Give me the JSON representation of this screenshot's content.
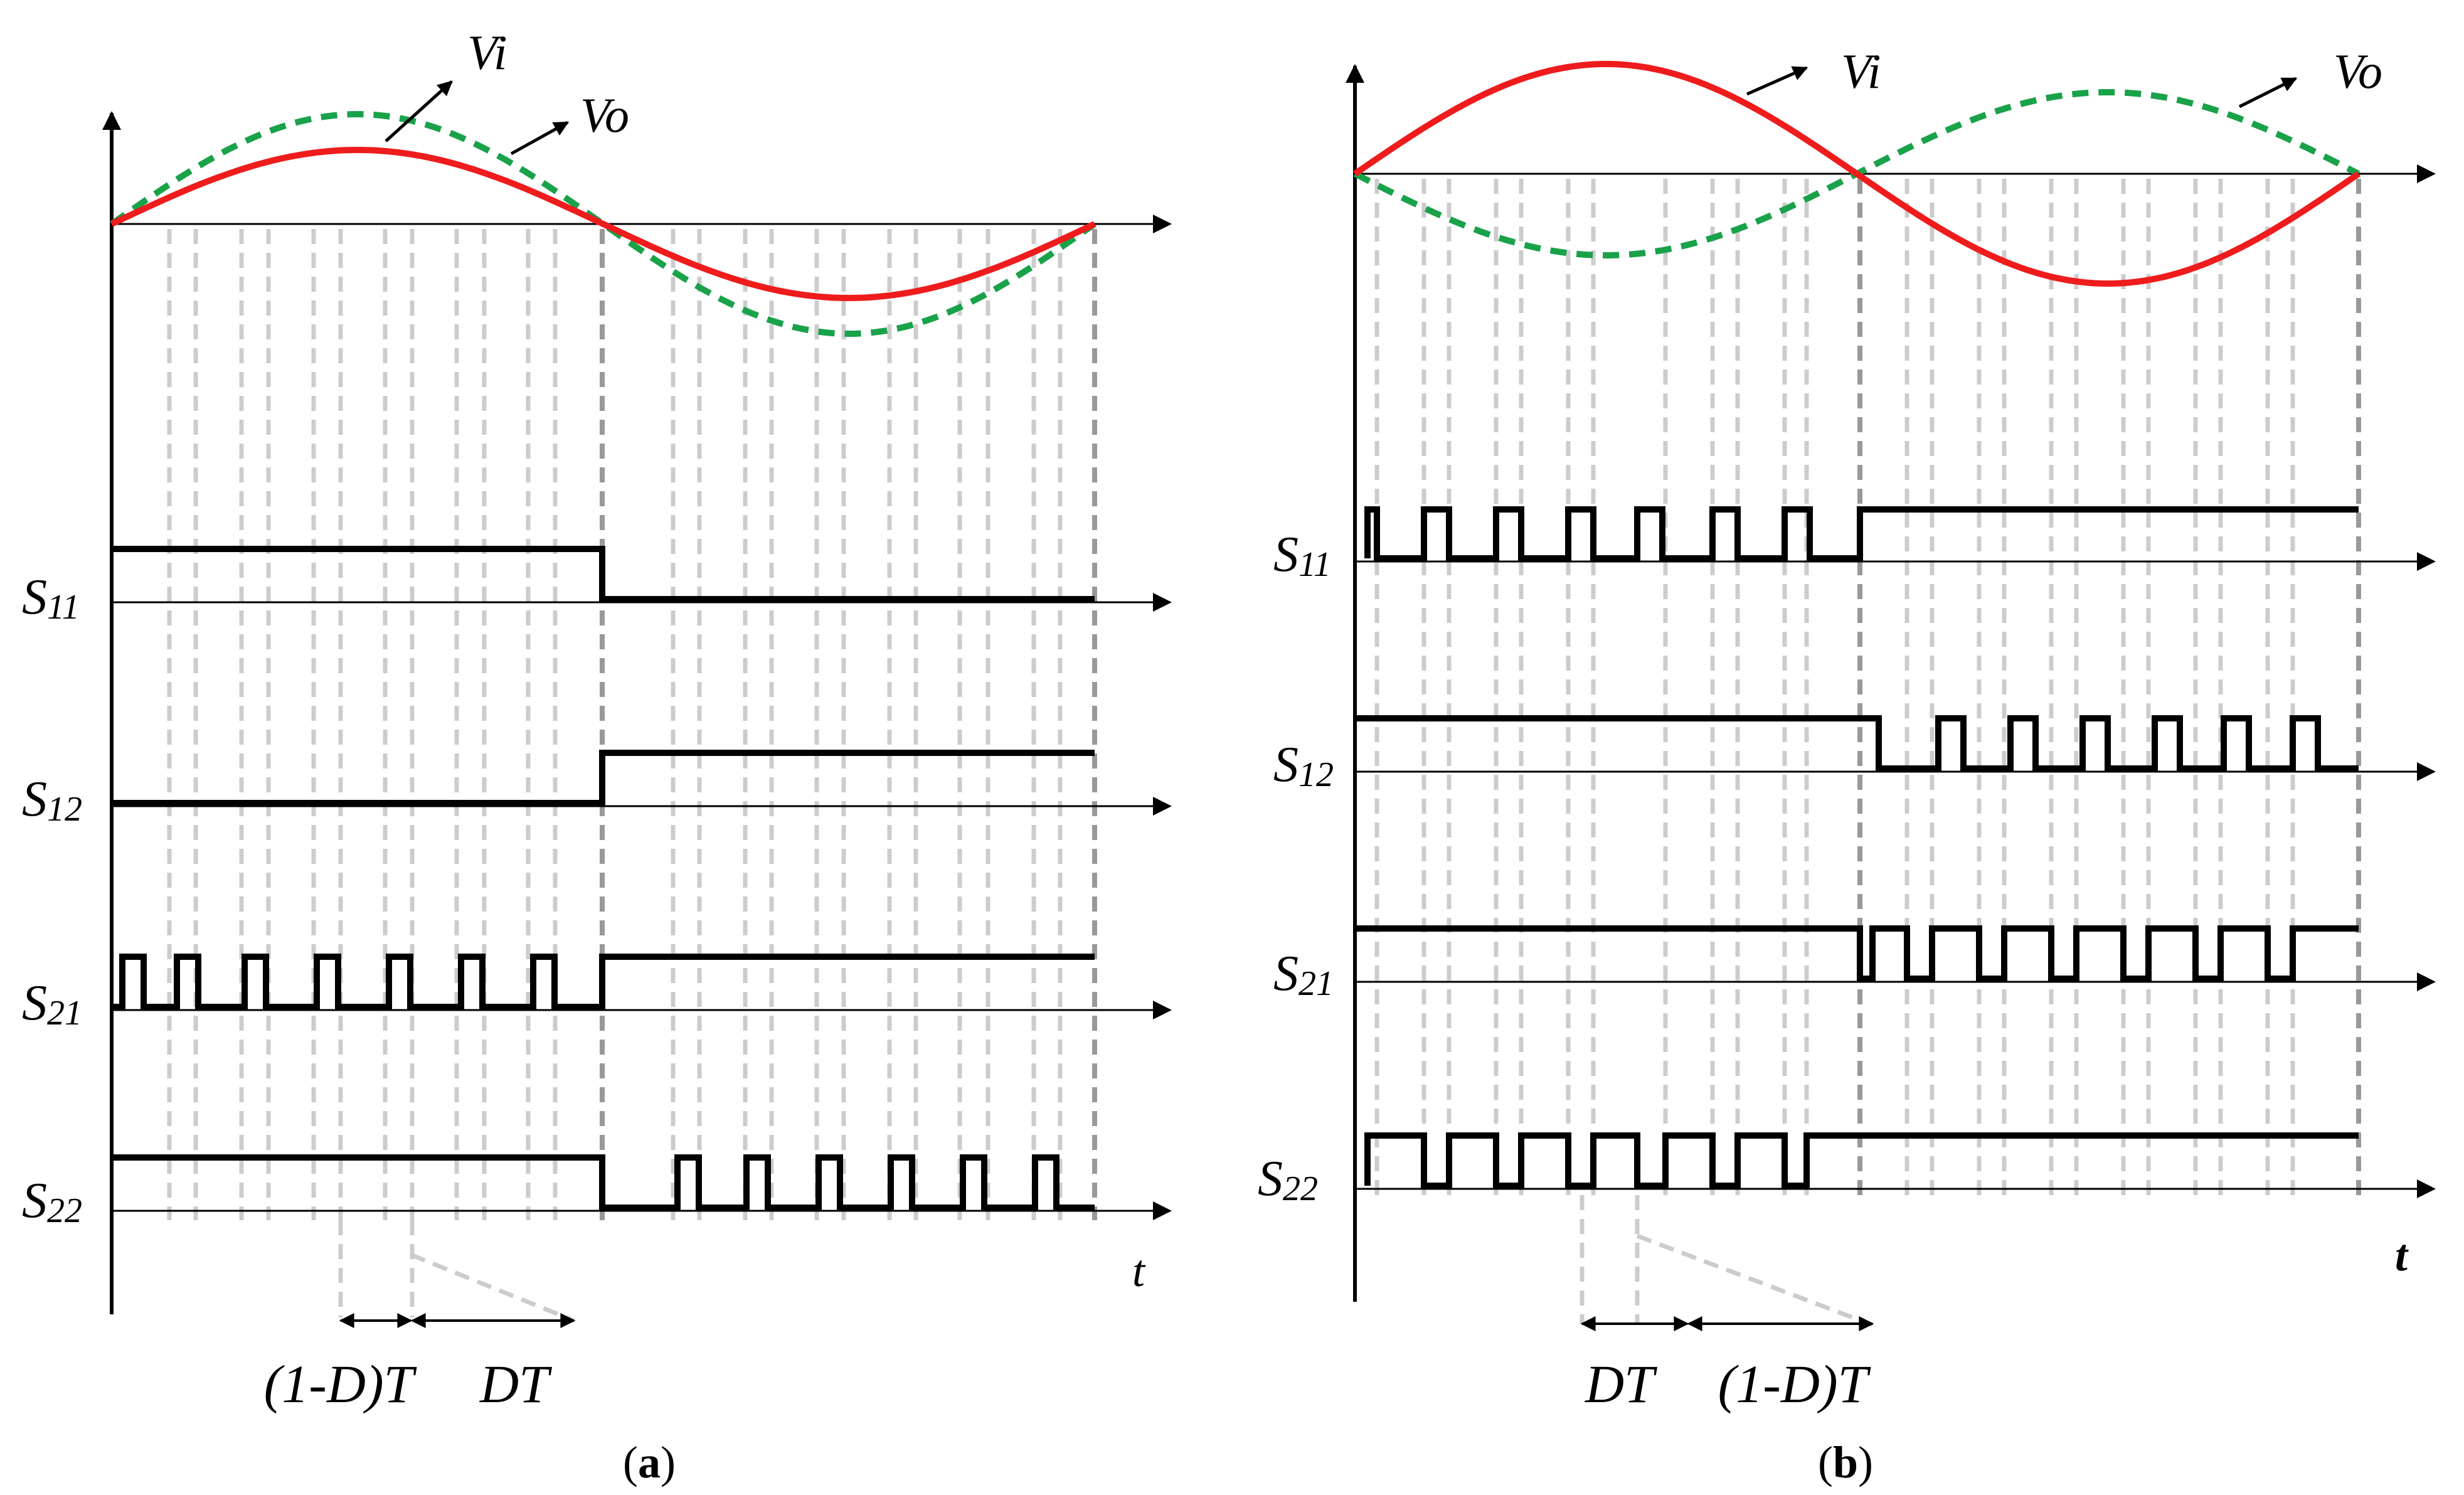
{
  "colors": {
    "vi": "#ee1c1c",
    "vo": "#19a24a",
    "signal": "#000000",
    "grid_light": "#cccccc",
    "grid_dark": "#999999"
  },
  "panel_a": {
    "caption_open": "(",
    "caption_letter": "a",
    "caption_close": ")",
    "vi_label": "Vi",
    "vo_label": "Vo",
    "time_label": "t",
    "switches": [
      {
        "name": "S11",
        "main": "S",
        "sub": "11"
      },
      {
        "name": "S12",
        "main": "S",
        "sub": "12"
      },
      {
        "name": "S21",
        "main": "S",
        "sub": "21"
      },
      {
        "name": "S22",
        "main": "S",
        "sub": "22"
      }
    ],
    "interval_1": "(1-D)T",
    "interval_2": "DT"
  },
  "panel_b": {
    "caption_open": "(",
    "caption_letter": "b",
    "caption_close": ")",
    "vi_label": "Vi",
    "vo_label": "Vo",
    "time_label": "t",
    "switches": [
      {
        "name": "S11",
        "main": "S",
        "sub": "11"
      },
      {
        "name": "S12",
        "main": "S",
        "sub": "12"
      },
      {
        "name": "S21",
        "main": "S",
        "sub": "21"
      },
      {
        "name": "S22",
        "main": "S",
        "sub": "22"
      }
    ],
    "interval_1": "DT",
    "interval_2": "(1-D)T"
  }
}
